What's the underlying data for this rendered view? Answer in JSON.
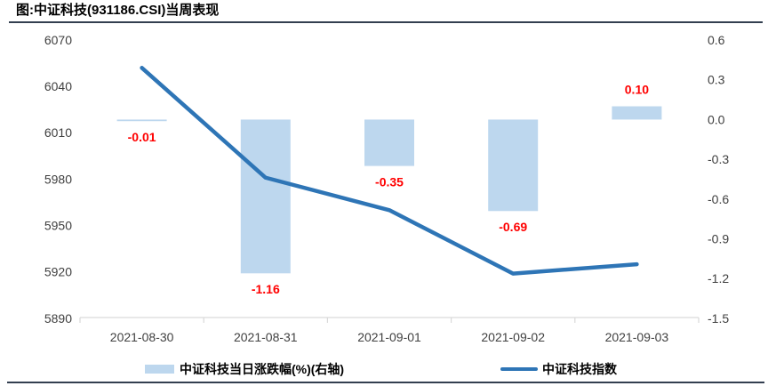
{
  "header": {
    "title": "图:中证科技(931186.CSI)当周表现"
  },
  "legend": {
    "bar_label": "中证科技当日涨跌幅(%)(右轴)",
    "line_label": "中证科技指数"
  },
  "colors": {
    "bar_fill": "#BDD7EE",
    "line_stroke": "#2E75B6",
    "data_label": "#FF0000",
    "axis_text": "#404040",
    "axis_line": "#D9D9D9",
    "rule": "#333F50"
  },
  "chart_data": {
    "type": "combo",
    "title": "图:中证科技(931186.CSI)当周表现",
    "categories": [
      "2021-08-30",
      "2021-08-31",
      "2021-09-01",
      "2021-09-02",
      "2021-09-03"
    ],
    "series": [
      {
        "name": "中证科技当日涨跌幅(%)(右轴)",
        "type": "bar",
        "axis": "right",
        "values": [
          -0.01,
          -1.16,
          -0.35,
          -0.69,
          0.1
        ],
        "labels": [
          "-0.01",
          "-1.16",
          "-0.35",
          "-0.69",
          "0.10"
        ]
      },
      {
        "name": "中证科技指数",
        "type": "line",
        "axis": "left",
        "values": [
          6052,
          5981,
          5960,
          5919,
          5925
        ]
      }
    ],
    "left_axis": {
      "min": 5890,
      "max": 6070,
      "ticks": [
        6070,
        6040,
        6010,
        5980,
        5950,
        5920,
        5890
      ]
    },
    "right_axis": {
      "min": -1.5,
      "max": 0.6,
      "ticks": [
        0.6,
        0.3,
        0.0,
        -0.3,
        -0.6,
        -0.9,
        -1.2,
        -1.5
      ]
    },
    "grid": false,
    "legend_position": "bottom"
  }
}
